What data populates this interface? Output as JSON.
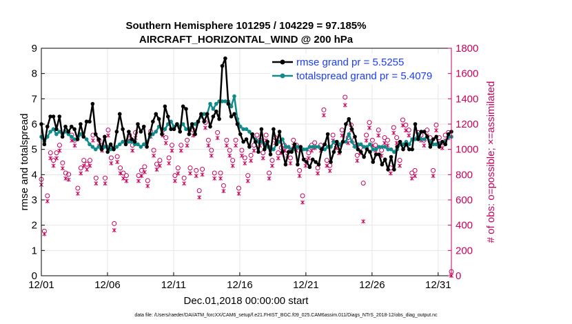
{
  "chart_data": {
    "type": "line",
    "title": [
      "Southern Hemisphere 101295 / 104229 = 97.185%",
      "AIRCRAFT_HORIZONTAL_WIND @ 200 hPa"
    ],
    "xlabel": "Dec.01,2018 00:00:00 start",
    "ylabel_left": "rmse and totalspread",
    "ylabel_right": "# of obs: o=possible; ×=assimilated",
    "footnote": "data file: /Users/raeder/DAI/ATM_forcXX/CAM6_setup/f.e21.FHIST_BGC.f09_025.CAM6assim.011/Diags_NTrS_2018-12/obs_diag_output.nc",
    "x_ticks": [
      "12/01",
      "12/06",
      "12/11",
      "12/16",
      "12/21",
      "12/26",
      "12/31"
    ],
    "xlim": [
      0,
      31
    ],
    "ylim_left": [
      0,
      9
    ],
    "ylim_right": [
      0,
      1800
    ],
    "yticks_left": [
      "0",
      "1",
      "2",
      "3",
      "4",
      "5",
      "6",
      "7",
      "8",
      "9"
    ],
    "yticks_right": [
      "0",
      "200",
      "400",
      "600",
      "800",
      "1000",
      "1200",
      "1400",
      "1600",
      "1800"
    ],
    "colors": {
      "rmse": "#000000",
      "spread": "#118a8a",
      "obs": "#c8005a",
      "legend_text": "#1a3cff",
      "grid": "#e6e6e6"
    },
    "series": [
      {
        "name": "rmse grand pr = 5.5255",
        "values": [
          6.0,
          5.2,
          5.9,
          6.3,
          6.3,
          5.8,
          6.3,
          5.5,
          5.9,
          5.7,
          5.9,
          5.8,
          5.4,
          6.0,
          5.5,
          6.1,
          6.1,
          6.8,
          5.6,
          5.4,
          5.0,
          5.5,
          4.9,
          5.2,
          5.0,
          5.7,
          6.4,
          5.8,
          5.2,
          5.7,
          5.4,
          5.3,
          6.0,
          5.7,
          5.9,
          5.1,
          5.6,
          6.1,
          6.4,
          6.2,
          5.6,
          6.7,
          6.3,
          5.8,
          5.8,
          6.0,
          5.7,
          6.7,
          6.6,
          5.6,
          6.0,
          5.6,
          6.1,
          6.4,
          6.1,
          6.4,
          5.9,
          6.3,
          6.5,
          6.2,
          8.3,
          8.6,
          6.8,
          6.3,
          6.4,
          6.0,
          5.6,
          5.3,
          5.4,
          5.1,
          5.6,
          5.3,
          4.9,
          5.8,
          5.0,
          5.3,
          4.8,
          5.8,
          5.2,
          5.7,
          4.9,
          4.4,
          4.9,
          4.9,
          5.2,
          4.4,
          5.1,
          4.6,
          4.5,
          4.3,
          4.6,
          4.5,
          4.4,
          5.0,
          5.2,
          5.6,
          4.5,
          4.9,
          5.3,
          4.9,
          5.3,
          6.0,
          6.2,
          5.8,
          5.5,
          5.0,
          4.9,
          4.7,
          5.0,
          4.9,
          4.5,
          4.8,
          4.8,
          4.4,
          4.6,
          4.2,
          4.7,
          4.2,
          5.1,
          5.3,
          5.0,
          5.2,
          5.0,
          5.0,
          6.0,
          5.4,
          5.7,
          5.7,
          5.5,
          5.1,
          5.4,
          5.5,
          5.1,
          5.3,
          5.2,
          5.6,
          5.7
        ],
        "color": "#000000"
      },
      {
        "name": "totalspread grand pr = 5.4079",
        "values": [
          5.5,
          5.3,
          5.5,
          5.7,
          5.8,
          5.6,
          5.7,
          5.6,
          5.7,
          5.6,
          5.5,
          5.4,
          5.4,
          5.6,
          5.5,
          5.4,
          5.2,
          5.1,
          5.0,
          5.1,
          5.0,
          5.1,
          5.1,
          5.0,
          5.0,
          5.1,
          5.2,
          5.3,
          5.3,
          5.3,
          5.3,
          5.2,
          5.2,
          5.1,
          5.2,
          5.3,
          5.5,
          5.6,
          5.7,
          5.9,
          5.8,
          5.8,
          6.0,
          6.1,
          5.9,
          6.0,
          5.9,
          6.0,
          5.8,
          5.8,
          6.0,
          6.0,
          6.1,
          6.3,
          6.4,
          6.4,
          6.8,
          6.6,
          6.8,
          6.9,
          6.9,
          6.9,
          6.9,
          6.7,
          7.1,
          6.2,
          5.9,
          5.8,
          5.8,
          5.7,
          5.5,
          5.4,
          5.3,
          5.3,
          5.2,
          5.1,
          5.1,
          5.0,
          5.2,
          5.3,
          5.4,
          5.1,
          5.1,
          5.0,
          5.0,
          5.1,
          5.0,
          5.0,
          5.0,
          5.1,
          5.1,
          5.1,
          5.1,
          5.0,
          5.0,
          5.1,
          5.1,
          5.3,
          5.3,
          5.2,
          5.3,
          5.3,
          5.6,
          5.3,
          5.1,
          5.2,
          5.2,
          5.1,
          5.1,
          5.2,
          5.0,
          5.0,
          5.1,
          5.1,
          5.1,
          5.0,
          5.0,
          4.9,
          5.0,
          5.2,
          5.2,
          5.3,
          5.2,
          5.4,
          5.4,
          5.6,
          5.4,
          5.4,
          5.5,
          5.3,
          5.2,
          5.2,
          5.2,
          5.3,
          5.3,
          5.5,
          5.5
        ],
        "color": "#118a8a"
      },
      {
        "name": "obs possible",
        "marker": "o",
        "values": [
          730,
          320,
          600,
          940,
          880,
          940,
          1000,
          860,
          780,
          770,
          1080,
          1040,
          660,
          820,
          880,
          850,
          880,
          1080,
          740,
          1040,
          1000,
          740,
          1120,
          900,
          380,
          910,
          820,
          780,
          760,
          1080,
          1000,
          1100,
          760,
          800,
          830,
          720,
          1110,
          960,
          850,
          880,
          1120,
          1060,
          900,
          1000,
          760,
          820,
          1000,
          740,
          1040,
          820,
          1120,
          800,
          640,
          810,
          1180,
          1040,
          960,
          780,
          1100,
          780,
          680,
          1040,
          960,
          880,
          1040,
          660,
          960,
          900,
          760,
          920,
          1000,
          1080,
          1040,
          940,
          1080,
          780,
          880,
          1060,
          940,
          980,
          1000,
          960,
          900,
          1040,
          1000,
          800,
          600,
          880,
          940,
          1000,
          1020,
          820,
          1000,
          1280,
          880,
          840,
          1080,
          1020,
          980,
          1120,
          1380,
          1060,
          1160,
          1040,
          920,
          980,
          700,
          1080,
          1180,
          1040,
          1000,
          1120,
          960,
          1060,
          1040,
          820,
          1140,
          1060,
          880,
          1200,
          1160,
          1120,
          780,
          800,
          1100,
          1080,
          1040,
          1120,
          1060,
          800,
          1160,
          1060,
          1020,
          1080,
          1100,
          0
        ],
        "color": "#c8005a"
      },
      {
        "name": "obs assimilated",
        "marker": "x",
        "values": [
          720,
          330,
          590,
          930,
          870,
          930,
          990,
          850,
          770,
          760,
          1070,
          1030,
          650,
          810,
          870,
          840,
          870,
          1070,
          730,
          1030,
          990,
          730,
          1110,
          890,
          360,
          900,
          810,
          770,
          750,
          1070,
          990,
          1090,
          750,
          790,
          820,
          710,
          1100,
          950,
          840,
          870,
          1110,
          1050,
          890,
          990,
          750,
          810,
          990,
          730,
          1030,
          810,
          1110,
          790,
          620,
          800,
          1170,
          1030,
          950,
          770,
          1090,
          770,
          670,
          1030,
          950,
          870,
          1030,
          650,
          950,
          890,
          750,
          910,
          990,
          1070,
          1030,
          930,
          1070,
          770,
          870,
          1050,
          930,
          970,
          990,
          950,
          890,
          1030,
          990,
          790,
          580,
          870,
          930,
          990,
          1010,
          810,
          990,
          1270,
          870,
          830,
          1070,
          1010,
          970,
          1110,
          1350,
          1050,
          1150,
          1030,
          910,
          970,
          430,
          1070,
          1170,
          1030,
          990,
          1110,
          950,
          1050,
          1030,
          810,
          1130,
          1050,
          870,
          1190,
          1150,
          1110,
          770,
          790,
          1090,
          1070,
          1030,
          1110,
          1050,
          790,
          1150,
          1050,
          1010,
          1070,
          1090,
          0
        ],
        "color": "#c8005a"
      }
    ]
  }
}
